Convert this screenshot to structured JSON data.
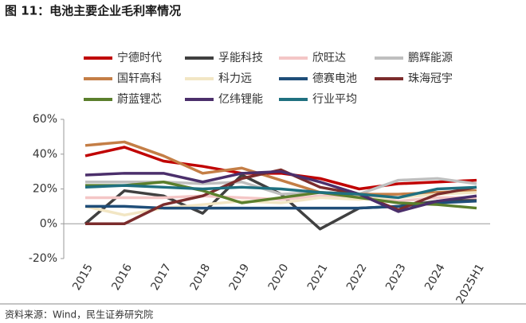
{
  "chart_data": {
    "type": "line",
    "title": "图 11：电池主要企业毛利率情况",
    "source": "资料来源：Wind，民生证券研究院",
    "categories": [
      "2015",
      "2016",
      "2017",
      "2018",
      "2019",
      "2020",
      "2021",
      "2022",
      "2023",
      "2024",
      "2025H1"
    ],
    "ylim": [
      -20,
      60
    ],
    "yticks": [
      {
        "value": -20,
        "label": "-20%"
      },
      {
        "value": 0,
        "label": "0%"
      },
      {
        "value": 20,
        "label": "20%"
      },
      {
        "value": 40,
        "label": "40%"
      },
      {
        "value": 60,
        "label": "60%"
      }
    ],
    "series": [
      {
        "name": "宁德时代",
        "color": "#c00000",
        "values": [
          39,
          44,
          36,
          33,
          29,
          29,
          26,
          20,
          23,
          24,
          25
        ]
      },
      {
        "name": "孚能科技",
        "color": "#404040",
        "values": [
          0,
          19,
          16,
          6,
          28,
          17,
          -3,
          9,
          10,
          13,
          14
        ]
      },
      {
        "name": "欣旺达",
        "color": "#f4c6c6",
        "values": [
          15,
          15,
          15,
          16,
          15,
          14,
          16,
          16,
          13,
          15,
          15
        ]
      },
      {
        "name": "鹏辉能源",
        "color": "#bfbfbf",
        "values": [
          24,
          24,
          24,
          23,
          24,
          17,
          18,
          17,
          25,
          26,
          23
        ]
      },
      {
        "name": "国轩高科",
        "color": "#c47e46",
        "values": [
          45,
          47,
          39,
          29,
          32,
          25,
          18,
          17,
          17,
          18,
          19
        ]
      },
      {
        "name": "科力远",
        "color": "#f2e6c4",
        "values": [
          10,
          5,
          9,
          11,
          13,
          12,
          15,
          14,
          15,
          17,
          18
        ]
      },
      {
        "name": "德赛电池",
        "color": "#1f4e79",
        "values": [
          10,
          10,
          9,
          9,
          9,
          9,
          9,
          9,
          10,
          12,
          13
        ]
      },
      {
        "name": "珠海冠宇",
        "color": "#7b2c2c",
        "values": [
          0,
          0,
          11,
          16,
          26,
          31,
          21,
          17,
          8,
          17,
          21
        ]
      },
      {
        "name": "蔚蓝锂芯",
        "color": "#5b7f2c",
        "values": [
          22,
          22,
          24,
          19,
          12,
          15,
          18,
          15,
          12,
          11,
          9
        ]
      },
      {
        "name": "亿纬锂能",
        "color": "#4b2f6b",
        "values": [
          28,
          29,
          29,
          24,
          29,
          30,
          24,
          17,
          7,
          13,
          16
        ]
      },
      {
        "name": "行业平均",
        "color": "#1f7080",
        "values": [
          21,
          22,
          21,
          20,
          21,
          20,
          18,
          17,
          15,
          20,
          21
        ]
      }
    ]
  }
}
